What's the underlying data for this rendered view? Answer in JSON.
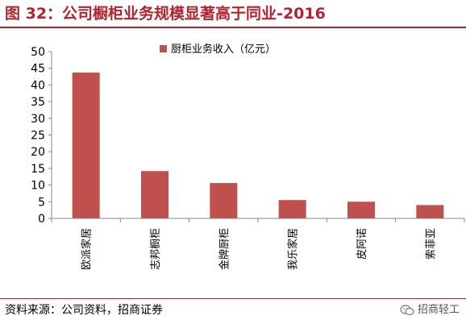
{
  "figure": {
    "title": "图 32：公司橱柜业务规模显著高于同业-2016",
    "source": "资料来源：公司资料，招商证券",
    "watermark": "招商轻工"
  },
  "colors": {
    "accent": "#b3232d",
    "bar": "#c0504d"
  },
  "chart_data": {
    "type": "bar",
    "categories": [
      "欧派家居",
      "志邦橱柜",
      "金牌厨柜",
      "我乐家居",
      "皮阿诺",
      "索菲亚"
    ],
    "series": [
      {
        "name": "厨柜业务收入（亿元）",
        "values": [
          43.7,
          14.2,
          10.6,
          5.5,
          5.0,
          4.0
        ]
      }
    ],
    "ylim": [
      0,
      50
    ],
    "yticks": [
      0,
      5,
      10,
      15,
      20,
      25,
      30,
      35,
      40,
      45,
      50
    ],
    "grid": false,
    "legend": "top-center"
  }
}
